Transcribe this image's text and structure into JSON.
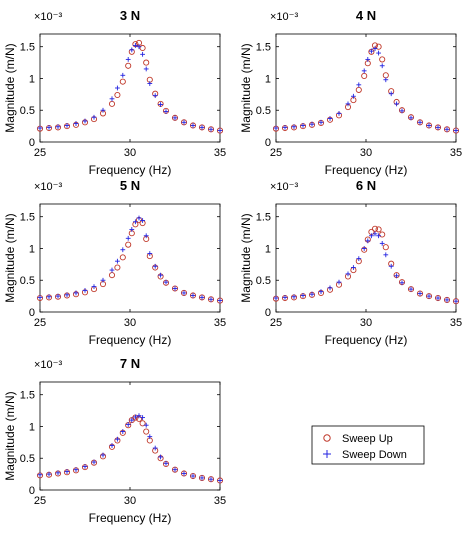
{
  "chart_data": [
    {
      "type": "scatter",
      "title": "3 N",
      "xlabel": "Frequency (Hz)",
      "ylabel": "Magnitude (m/N)",
      "y_multiplier": "×10⁻³",
      "xlim": [
        25,
        35
      ],
      "ylim": [
        0,
        1.7
      ],
      "xticks": [
        25,
        30,
        35
      ],
      "yticks": [
        0,
        0.5,
        1,
        1.5
      ],
      "series": [
        {
          "name": "Sweep Up",
          "x": [
            25,
            25.5,
            26,
            26.5,
            27,
            27.5,
            28,
            28.5,
            29,
            29.3,
            29.6,
            29.9,
            30.1,
            30.3,
            30.5,
            30.7,
            30.9,
            31.1,
            31.4,
            31.7,
            32,
            32.5,
            33,
            33.5,
            34,
            34.5,
            35
          ],
          "y": [
            0.21,
            0.22,
            0.23,
            0.25,
            0.27,
            0.31,
            0.36,
            0.45,
            0.6,
            0.74,
            0.95,
            1.2,
            1.42,
            1.54,
            1.56,
            1.48,
            1.25,
            0.98,
            0.76,
            0.6,
            0.49,
            0.38,
            0.31,
            0.26,
            0.23,
            0.2,
            0.18
          ]
        },
        {
          "name": "Sweep Down",
          "x": [
            25,
            25.5,
            26,
            26.5,
            27,
            27.5,
            28,
            28.5,
            29,
            29.3,
            29.6,
            29.9,
            30.1,
            30.3,
            30.5,
            30.7,
            30.9,
            31.1,
            31.4,
            31.7,
            32,
            32.5,
            33,
            33.5,
            34,
            34.5,
            35
          ],
          "y": [
            0.22,
            0.23,
            0.24,
            0.26,
            0.29,
            0.33,
            0.39,
            0.5,
            0.68,
            0.85,
            1.05,
            1.3,
            1.45,
            1.52,
            1.5,
            1.38,
            1.15,
            0.92,
            0.73,
            0.59,
            0.48,
            0.38,
            0.31,
            0.26,
            0.23,
            0.2,
            0.18
          ]
        }
      ]
    },
    {
      "type": "scatter",
      "title": "4 N",
      "xlabel": "Frequency (Hz)",
      "ylabel": "Magnitude (m/N)",
      "y_multiplier": "×10⁻³",
      "xlim": [
        25,
        35
      ],
      "ylim": [
        0,
        1.7
      ],
      "xticks": [
        25,
        30,
        35
      ],
      "yticks": [
        0,
        0.5,
        1,
        1.5
      ],
      "series": [
        {
          "name": "Sweep Up",
          "x": [
            25,
            25.5,
            26,
            26.5,
            27,
            27.5,
            28,
            28.5,
            29,
            29.3,
            29.6,
            29.9,
            30.1,
            30.3,
            30.5,
            30.7,
            30.9,
            31.1,
            31.4,
            31.7,
            32,
            32.5,
            33,
            33.5,
            34,
            34.5,
            35
          ],
          "y": [
            0.21,
            0.22,
            0.23,
            0.25,
            0.27,
            0.3,
            0.35,
            0.42,
            0.55,
            0.66,
            0.82,
            1.04,
            1.24,
            1.42,
            1.52,
            1.5,
            1.3,
            1.05,
            0.8,
            0.63,
            0.5,
            0.39,
            0.31,
            0.26,
            0.23,
            0.2,
            0.18
          ]
        },
        {
          "name": "Sweep Down",
          "x": [
            25,
            25.5,
            26,
            26.5,
            27,
            27.5,
            28,
            28.5,
            29,
            29.3,
            29.6,
            29.9,
            30.1,
            30.3,
            30.5,
            30.7,
            30.9,
            31.1,
            31.4,
            31.7,
            32,
            32.5,
            33,
            33.5,
            34,
            34.5,
            35
          ],
          "y": [
            0.22,
            0.23,
            0.24,
            0.26,
            0.28,
            0.31,
            0.37,
            0.45,
            0.6,
            0.72,
            0.9,
            1.12,
            1.3,
            1.43,
            1.47,
            1.4,
            1.2,
            0.98,
            0.76,
            0.6,
            0.49,
            0.38,
            0.31,
            0.26,
            0.23,
            0.2,
            0.18
          ]
        }
      ]
    },
    {
      "type": "scatter",
      "title": "5 N",
      "xlabel": "Frequency (Hz)",
      "ylabel": "Magnitude (m/N)",
      "y_multiplier": "×10⁻³",
      "xlim": [
        25,
        35
      ],
      "ylim": [
        0,
        1.7
      ],
      "xticks": [
        25,
        30,
        35
      ],
      "yticks": [
        0,
        0.5,
        1,
        1.5
      ],
      "series": [
        {
          "name": "Sweep Up",
          "x": [
            25,
            25.5,
            26,
            26.5,
            27,
            27.5,
            28,
            28.5,
            29,
            29.3,
            29.6,
            29.9,
            30.1,
            30.3,
            30.5,
            30.7,
            30.9,
            31.1,
            31.4,
            31.7,
            32,
            32.5,
            33,
            33.5,
            34,
            34.5,
            35
          ],
          "y": [
            0.22,
            0.23,
            0.24,
            0.26,
            0.28,
            0.31,
            0.36,
            0.44,
            0.58,
            0.7,
            0.86,
            1.06,
            1.24,
            1.38,
            1.45,
            1.4,
            1.15,
            0.88,
            0.7,
            0.56,
            0.46,
            0.37,
            0.3,
            0.26,
            0.23,
            0.2,
            0.18
          ]
        },
        {
          "name": "Sweep Down",
          "x": [
            25,
            25.5,
            26,
            26.5,
            27,
            27.5,
            28,
            28.5,
            29,
            29.3,
            29.6,
            29.9,
            30.1,
            30.3,
            30.5,
            30.7,
            30.9,
            31.1,
            31.4,
            31.7,
            32,
            32.5,
            33,
            33.5,
            34,
            34.5,
            35
          ],
          "y": [
            0.23,
            0.24,
            0.25,
            0.27,
            0.3,
            0.34,
            0.4,
            0.5,
            0.66,
            0.8,
            0.98,
            1.16,
            1.3,
            1.42,
            1.48,
            1.44,
            1.2,
            0.92,
            0.72,
            0.58,
            0.47,
            0.37,
            0.3,
            0.26,
            0.23,
            0.2,
            0.18
          ]
        }
      ]
    },
    {
      "type": "scatter",
      "title": "6 N",
      "xlabel": "Frequency (Hz)",
      "ylabel": "Magnitude (m/N)",
      "y_multiplier": "×10⁻³",
      "xlim": [
        25,
        35
      ],
      "ylim": [
        0,
        1.7
      ],
      "xticks": [
        25,
        30,
        35
      ],
      "yticks": [
        0,
        0.5,
        1,
        1.5
      ],
      "series": [
        {
          "name": "Sweep Up",
          "x": [
            25,
            25.5,
            26,
            26.5,
            27,
            27.5,
            28,
            28.5,
            29,
            29.3,
            29.6,
            29.9,
            30.1,
            30.3,
            30.5,
            30.7,
            30.9,
            31.1,
            31.4,
            31.7,
            32,
            32.5,
            33,
            33.5,
            34,
            34.5,
            35
          ],
          "y": [
            0.21,
            0.22,
            0.23,
            0.25,
            0.27,
            0.3,
            0.35,
            0.43,
            0.56,
            0.66,
            0.8,
            0.98,
            1.14,
            1.26,
            1.31,
            1.3,
            1.22,
            1.02,
            0.76,
            0.58,
            0.47,
            0.36,
            0.29,
            0.25,
            0.22,
            0.19,
            0.17
          ]
        },
        {
          "name": "Sweep Down",
          "x": [
            25,
            25.5,
            26,
            26.5,
            27,
            27.5,
            28,
            28.5,
            29,
            29.3,
            29.6,
            29.9,
            30.1,
            30.3,
            30.5,
            30.7,
            30.9,
            31.1,
            31.4,
            31.7,
            32,
            32.5,
            33,
            33.5,
            34,
            34.5,
            35
          ],
          "y": [
            0.22,
            0.23,
            0.24,
            0.26,
            0.28,
            0.32,
            0.38,
            0.47,
            0.6,
            0.7,
            0.84,
            1.0,
            1.12,
            1.2,
            1.23,
            1.2,
            1.08,
            0.9,
            0.72,
            0.57,
            0.46,
            0.36,
            0.29,
            0.25,
            0.22,
            0.19,
            0.17
          ]
        }
      ]
    },
    {
      "type": "scatter",
      "title": "7 N",
      "xlabel": "Frequency (Hz)",
      "ylabel": "Magnitude (m/N)",
      "y_multiplier": "×10⁻³",
      "xlim": [
        25,
        35
      ],
      "ylim": [
        0,
        1.7
      ],
      "xticks": [
        25,
        30,
        35
      ],
      "yticks": [
        0,
        0.5,
        1,
        1.5
      ],
      "series": [
        {
          "name": "Sweep Up",
          "x": [
            25,
            25.5,
            26,
            26.5,
            27,
            27.5,
            28,
            28.5,
            29,
            29.3,
            29.6,
            29.9,
            30.1,
            30.3,
            30.5,
            30.7,
            30.9,
            31.1,
            31.4,
            31.7,
            32,
            32.5,
            33,
            33.5,
            34,
            34.5,
            35
          ],
          "y": [
            0.23,
            0.24,
            0.26,
            0.28,
            0.31,
            0.36,
            0.43,
            0.53,
            0.68,
            0.78,
            0.9,
            1.02,
            1.1,
            1.14,
            1.12,
            1.05,
            0.92,
            0.78,
            0.62,
            0.5,
            0.41,
            0.32,
            0.26,
            0.22,
            0.19,
            0.17,
            0.15
          ]
        },
        {
          "name": "Sweep Down",
          "x": [
            25,
            25.5,
            26,
            26.5,
            27,
            27.5,
            28,
            28.5,
            29,
            29.3,
            29.6,
            29.9,
            30.1,
            30.3,
            30.5,
            30.7,
            30.9,
            31.1,
            31.4,
            31.7,
            32,
            32.5,
            33,
            33.5,
            34,
            34.5,
            35
          ],
          "y": [
            0.24,
            0.25,
            0.27,
            0.29,
            0.32,
            0.37,
            0.44,
            0.55,
            0.7,
            0.8,
            0.92,
            1.03,
            1.1,
            1.15,
            1.17,
            1.14,
            1.02,
            0.84,
            0.66,
            0.52,
            0.42,
            0.32,
            0.26,
            0.22,
            0.19,
            0.17,
            0.15
          ]
        }
      ]
    }
  ],
  "legend": {
    "position": "right of bottom plot",
    "items": [
      {
        "label": "Sweep Up",
        "marker": "circle",
        "color": "#c0392b"
      },
      {
        "label": "Sweep Down",
        "marker": "plus",
        "color": "#2323e0"
      }
    ]
  },
  "colors": {
    "sweep_up": "#c0392b",
    "sweep_down": "#2323e0",
    "axis": "#000000"
  }
}
